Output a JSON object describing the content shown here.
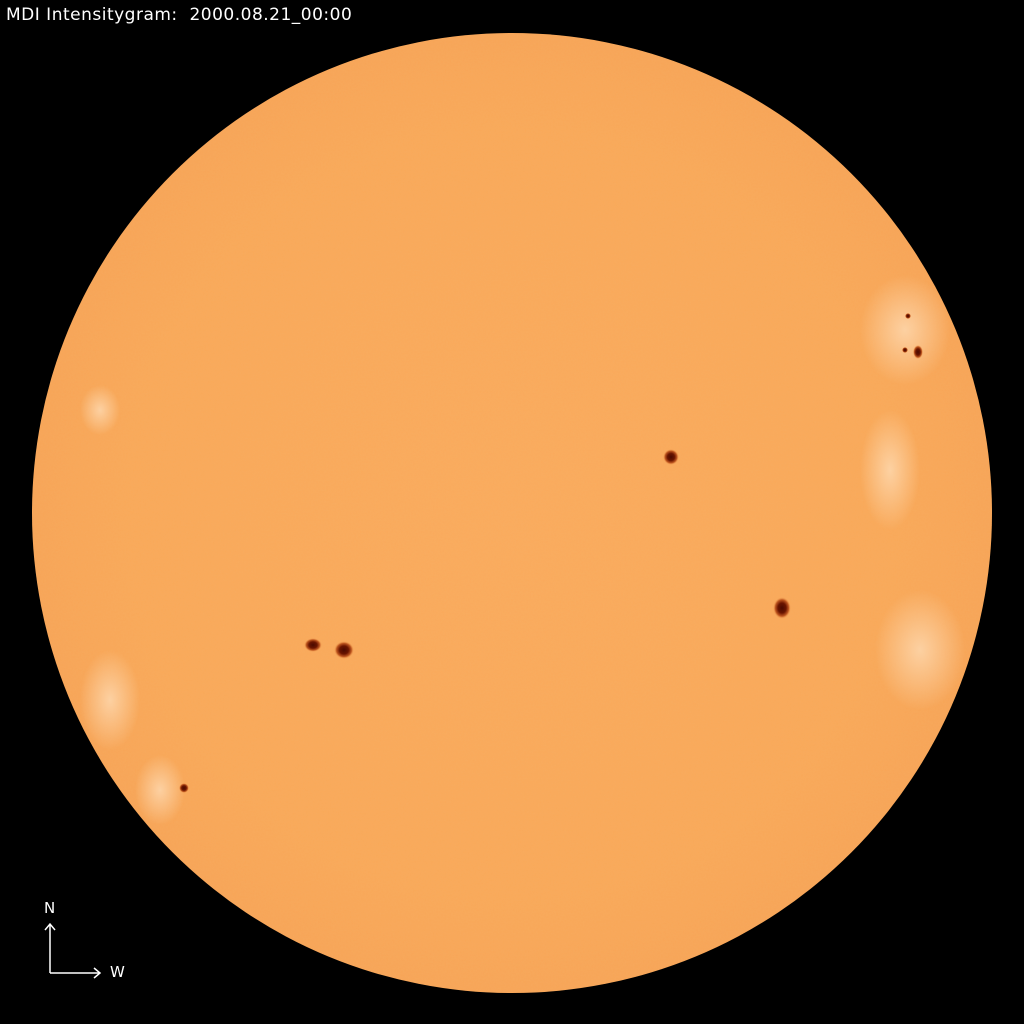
{
  "header": {
    "instrument": "MDI Intensitygram:",
    "timestamp": "2000.08.21_00:00"
  },
  "compass": {
    "north_label": "N",
    "west_label": "W"
  },
  "colors": {
    "background": "#000000",
    "disk": "#F9A85A",
    "sunspot_umbra": "#5a0f00",
    "sunspot_penumbra": "#c25a20",
    "faculae": "#FFD9B0"
  }
}
